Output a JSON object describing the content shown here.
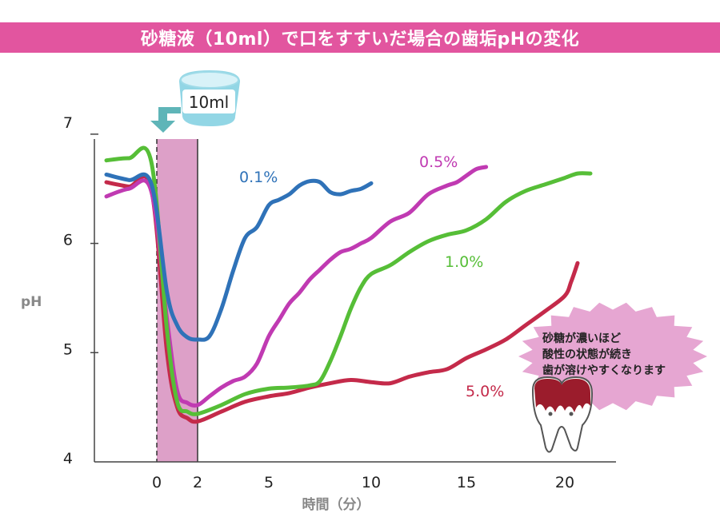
{
  "title": "砂糖液（10ml）で口をすすいだ場合の歯垢pHの変化",
  "cup_label": "10ml",
  "bubble_lines": [
    "砂糖が濃いほど",
    "酸性の状態が続き",
    "歯が溶けやすくなります"
  ],
  "colors": {
    "title_bg": "#e2559f",
    "band": "#dda0c8",
    "s0_1": "#2f72b8",
    "s0_5": "#c03ab2",
    "s1_0": "#56be37",
    "s5_0": "#c42a4a",
    "bubble": "#e6a6d2",
    "tooth": "#9b1c2c",
    "cup": "#7fcfe0",
    "arrow": "#5fb5b8"
  },
  "chart_data": {
    "type": "line",
    "title": "砂糖液（10ml）で口をすすいだ場合の歯垢pHの変化",
    "xlabel": "時間（分）",
    "ylabel": "pH",
    "x_ticks": [
      0,
      2,
      5,
      10,
      15,
      20
    ],
    "y_ticks": [
      4,
      5,
      6,
      7
    ],
    "xlim": [
      -3,
      24
    ],
    "ylim": [
      4,
      7
    ],
    "sugar_rinse_interval": [
      0,
      2
    ],
    "grid": false,
    "series": [
      {
        "name": "0.1%",
        "color_key": "s0_1",
        "x": [
          -2.7,
          -1.5,
          -0.3,
          0.5,
          1.0,
          1.5,
          2.0,
          2.5,
          3.0,
          3.5,
          4.0,
          4.5,
          5.0,
          5.5,
          6.0,
          6.5,
          7.0,
          7.5,
          8.0,
          8.5,
          9.0,
          9.5,
          10.0
        ],
        "y": [
          6.63,
          6.58,
          6.55,
          5.55,
          5.25,
          5.14,
          5.12,
          5.15,
          5.4,
          5.75,
          6.05,
          6.15,
          6.35,
          6.4,
          6.45,
          6.53,
          6.57,
          6.56,
          6.47,
          6.45,
          6.48,
          6.5,
          6.55
        ]
      },
      {
        "name": "0.5%",
        "color_key": "s0_5",
        "x": [
          -2.7,
          -1.5,
          -0.3,
          0.5,
          1.0,
          1.5,
          2.0,
          2.5,
          3.0,
          3.5,
          4.0,
          4.5,
          5.0,
          5.5,
          6.0,
          6.5,
          7.0,
          7.5,
          8.0,
          8.5,
          9.0,
          9.5,
          10.0,
          11.0,
          12.0,
          13.0,
          14.0,
          14.5,
          15.0,
          15.5,
          16.0
        ],
        "y": [
          6.43,
          6.5,
          6.48,
          5.3,
          4.65,
          4.54,
          4.52,
          4.6,
          4.68,
          4.74,
          4.78,
          4.9,
          5.15,
          5.3,
          5.45,
          5.55,
          5.67,
          5.76,
          5.85,
          5.92,
          5.95,
          6.0,
          6.05,
          6.2,
          6.28,
          6.45,
          6.53,
          6.56,
          6.62,
          6.68,
          6.7
        ]
      },
      {
        "name": "1.0%",
        "color_key": "s1_0",
        "x": [
          -2.7,
          -1.5,
          -0.3,
          0.5,
          1.0,
          1.5,
          2.0,
          3.0,
          4.0,
          5.0,
          6.0,
          7.0,
          7.5,
          8.0,
          8.5,
          9.0,
          9.5,
          10.0,
          11.0,
          12.0,
          13.0,
          14.0,
          15.0,
          16.0,
          17.0,
          18.0,
          19.0,
          20.0,
          21.0,
          22.0
        ],
        "y": [
          6.76,
          6.78,
          6.75,
          5.2,
          4.55,
          4.46,
          4.44,
          4.52,
          4.62,
          4.67,
          4.68,
          4.7,
          4.74,
          4.92,
          5.15,
          5.4,
          5.6,
          5.72,
          5.8,
          5.92,
          6.02,
          6.08,
          6.12,
          6.22,
          6.38,
          6.48,
          6.54,
          6.6,
          6.64,
          6.64
        ]
      },
      {
        "name": "5.0%",
        "color_key": "s5_0",
        "x": [
          -2.7,
          -1.5,
          -0.3,
          0.5,
          1.0,
          1.5,
          2.0,
          3.0,
          4.0,
          5.0,
          6.0,
          7.0,
          8.0,
          9.0,
          10.0,
          11.0,
          12.0,
          13.0,
          14.0,
          15.0,
          16.0,
          17.0,
          18.0,
          19.0,
          20.0,
          20.5,
          21.0
        ],
        "y": [
          6.56,
          6.52,
          6.5,
          5.0,
          4.5,
          4.4,
          4.37,
          4.46,
          4.55,
          4.6,
          4.63,
          4.68,
          4.72,
          4.75,
          4.73,
          4.72,
          4.78,
          4.82,
          4.85,
          4.95,
          5.03,
          5.12,
          5.25,
          5.38,
          5.52,
          5.65,
          5.82
        ]
      }
    ],
    "annotations": [
      "砂糖が濃いほど",
      "酸性の状態が続き",
      "歯が溶けやすくなります"
    ]
  }
}
